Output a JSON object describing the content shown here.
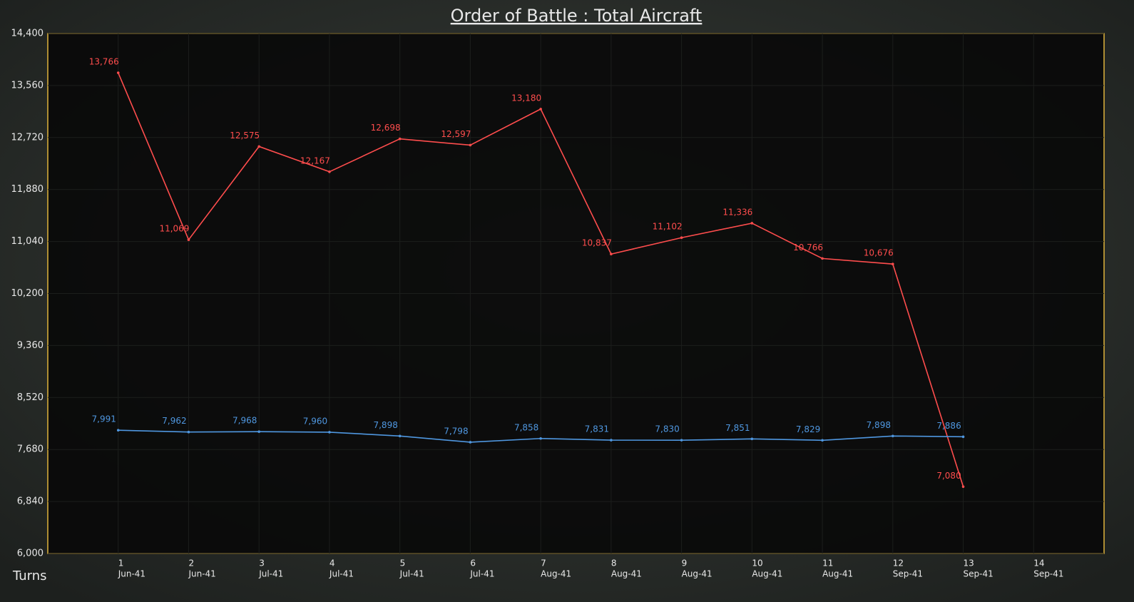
{
  "chart_data": {
    "type": "line",
    "title": "Order of Battle : Total Aircraft",
    "x_label": "Turns",
    "x": [
      1,
      2,
      3,
      4,
      5,
      6,
      7,
      8,
      9,
      10,
      11,
      12,
      13,
      14
    ],
    "dates": [
      "Jun-41",
      "Jun-41",
      "Jul-41",
      "Jul-41",
      "Jul-41",
      "Jul-41",
      "Aug-41",
      "Aug-41",
      "Aug-41",
      "Aug-41",
      "Aug-41",
      "Sep-41",
      "Sep-41",
      "Sep-41"
    ],
    "xlim": [
      0,
      15
    ],
    "xticks": [
      1,
      2,
      3,
      4,
      5,
      6,
      7,
      8,
      9,
      10,
      11,
      12,
      13,
      14
    ],
    "ylim": [
      6000,
      14400
    ],
    "yticks": [
      {
        "value": 6000,
        "label": "6,000"
      },
      {
        "value": 6840,
        "label": "6,840"
      },
      {
        "value": 7680,
        "label": "7,680"
      },
      {
        "value": 8520,
        "label": "8,520"
      },
      {
        "value": 9360,
        "label": "9,360"
      },
      {
        "value": 10200,
        "label": "10,200"
      },
      {
        "value": 11040,
        "label": "11,040"
      },
      {
        "value": 11880,
        "label": "11,880"
      },
      {
        "value": 12720,
        "label": "12,720"
      },
      {
        "value": 13560,
        "label": "13,560"
      },
      {
        "value": 14400,
        "label": "14,400"
      }
    ],
    "grid": true,
    "series": [
      {
        "color": "#ff4d4d",
        "values": [
          13766,
          11069,
          12575,
          12167,
          12698,
          12597,
          13180,
          10837,
          11102,
          11336,
          10766,
          10676,
          7080,
          null
        ],
        "value_labels": [
          "13,766",
          "11,069",
          "12,575",
          "12,167",
          "12,698",
          "12,597",
          "13,180",
          "10,837",
          "11,102",
          "11,336",
          "10,766",
          "10,676",
          "7,080",
          null
        ]
      },
      {
        "color": "#4f97e0",
        "values": [
          7991,
          7962,
          7968,
          7960,
          7898,
          7798,
          7858,
          7831,
          7830,
          7851,
          7829,
          7898,
          7886,
          null
        ],
        "value_labels": [
          "7,991",
          "7,962",
          "7,968",
          "7,960",
          "7,898",
          "7,798",
          "7,858",
          "7,831",
          "7,830",
          "7,851",
          "7,829",
          "7,898",
          "7,886",
          null
        ]
      }
    ]
  }
}
